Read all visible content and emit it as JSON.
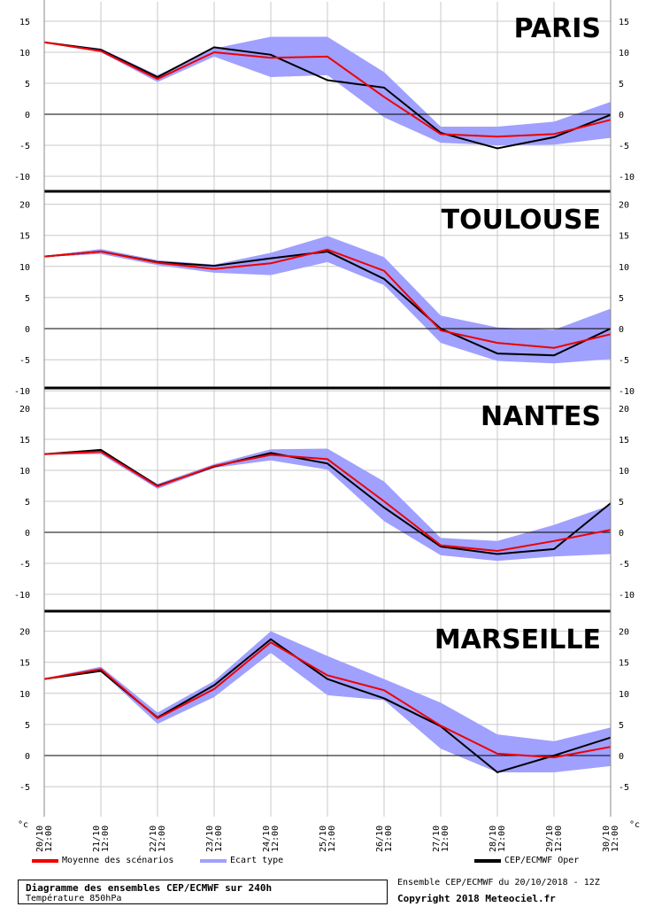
{
  "chart_data": [
    {
      "type": "line",
      "title": "PARIS",
      "yticks": [
        -10,
        -5,
        0,
        5,
        10,
        15
      ],
      "ylim": [
        -11,
        16
      ],
      "x": [
        "20/10 12:00",
        "21/10 12:00",
        "22/10 12:00",
        "23/10 12:00",
        "24/10 12:00",
        "25/10 12:00",
        "26/10 12:00",
        "27/10 12:00",
        "28/10 12:00",
        "29/10 12:00",
        "30/10 12:00"
      ],
      "series": [
        {
          "name": "Moyenne des scénarios",
          "values": [
            11.6,
            10.2,
            5.7,
            10.0,
            9.1,
            9.3,
            2.8,
            -3.2,
            -3.6,
            -3.2,
            -0.9
          ]
        },
        {
          "name": "CEP/ECMWF Oper",
          "values": [
            11.6,
            10.4,
            6.0,
            10.8,
            9.6,
            5.5,
            4.3,
            -3.0,
            -5.5,
            -3.7,
            -0.1
          ]
        }
      ],
      "band": {
        "name": "Ecart type",
        "upper": [
          11.7,
          10.6,
          6.3,
          10.6,
          12.5,
          12.5,
          6.8,
          -2.0,
          -2.0,
          -1.2,
          2.0
        ],
        "lower": [
          11.5,
          10.0,
          5.2,
          9.3,
          6.0,
          6.3,
          -0.5,
          -4.6,
          -5.0,
          -4.9,
          -3.8
        ]
      }
    },
    {
      "type": "line",
      "title": "TOULOUSE",
      "yticks": [
        -10,
        -5,
        0,
        5,
        10,
        15,
        20
      ],
      "ylim": [
        -10,
        21
      ],
      "x": [
        "20/10 12:00",
        "21/10 12:00",
        "22/10 12:00",
        "23/10 12:00",
        "24/10 12:00",
        "25/10 12:00",
        "26/10 12:00",
        "27/10 12:00",
        "28/10 12:00",
        "29/10 12:00",
        "30/10 12:00"
      ],
      "series": [
        {
          "name": "Moyenne des scénarios",
          "values": [
            11.6,
            12.4,
            10.6,
            9.6,
            10.5,
            12.7,
            9.3,
            -0.3,
            -2.3,
            -3.1,
            -0.9
          ]
        },
        {
          "name": "CEP/ECMWF Oper",
          "values": [
            11.6,
            12.4,
            10.7,
            10.1,
            11.3,
            12.4,
            8.0,
            0.0,
            -4.0,
            -4.3,
            0.0
          ]
        }
      ],
      "band": {
        "name": "Ecart type",
        "upper": [
          11.7,
          12.8,
          11.0,
          10.3,
          12.2,
          14.9,
          11.5,
          2.1,
          0.2,
          -0.2,
          3.2
        ],
        "lower": [
          11.5,
          12.0,
          10.2,
          9.0,
          8.6,
          10.7,
          7.0,
          -2.3,
          -5.2,
          -5.6,
          -4.9
        ]
      }
    },
    {
      "type": "line",
      "title": "NANTES",
      "yticks": [
        -10,
        -5,
        0,
        5,
        10,
        15,
        20
      ],
      "ylim": [
        -11,
        21
      ],
      "x": [
        "20/10 12:00",
        "21/10 12:00",
        "22/10 12:00",
        "23/10 12:00",
        "24/10 12:00",
        "25/10 12:00",
        "26/10 12:00",
        "27/10 12:00",
        "28/10 12:00",
        "29/10 12:00",
        "30/10 12:00"
      ],
      "series": [
        {
          "name": "Moyenne des scénarios",
          "values": [
            12.6,
            13.0,
            7.4,
            10.7,
            12.5,
            11.8,
            5.0,
            -2.1,
            -3.0,
            -1.4,
            0.4
          ]
        },
        {
          "name": "CEP/ECMWF Oper",
          "values": [
            12.6,
            13.3,
            7.5,
            10.6,
            12.8,
            11.1,
            4.0,
            -2.3,
            -3.5,
            -2.7,
            4.7
          ]
        }
      ],
      "band": {
        "name": "Ecart type",
        "upper": [
          12.7,
          13.4,
          7.8,
          11.0,
          13.4,
          13.5,
          8.2,
          -0.9,
          -1.4,
          1.2,
          4.4
        ],
        "lower": [
          12.5,
          12.6,
          7.0,
          10.4,
          11.6,
          10.1,
          1.8,
          -3.7,
          -4.6,
          -3.9,
          -3.5
        ]
      }
    },
    {
      "type": "line",
      "title": "MARSEILLE",
      "yticks": [
        -5,
        0,
        5,
        10,
        15,
        20
      ],
      "ylim": [
        -10,
        21
      ],
      "x": [
        "20/10 12:00",
        "21/10 12:00",
        "22/10 12:00",
        "23/10 12:00",
        "24/10 12:00",
        "25/10 12:00",
        "26/10 12:00",
        "27/10 12:00",
        "28/10 12:00",
        "29/10 12:00",
        "30/10 12:00"
      ],
      "series": [
        {
          "name": "Moyenne des scénarios",
          "values": [
            12.3,
            13.9,
            6.0,
            10.7,
            18.2,
            12.9,
            10.5,
            4.8,
            0.3,
            -0.3,
            1.4
          ]
        },
        {
          "name": "CEP/ECMWF Oper",
          "values": [
            12.3,
            13.6,
            6.1,
            11.3,
            18.7,
            12.3,
            9.2,
            4.7,
            -2.7,
            0.0,
            2.9
          ]
        }
      ],
      "band": {
        "name": "Ecart type",
        "upper": [
          12.4,
          14.3,
          6.9,
          12.0,
          20.0,
          16.0,
          12.3,
          8.5,
          3.4,
          2.3,
          4.5
        ],
        "lower": [
          12.2,
          13.5,
          5.1,
          9.4,
          16.5,
          9.7,
          8.9,
          1.1,
          -2.7,
          -2.7,
          -1.7
        ]
      }
    }
  ],
  "yunit": "°c",
  "xticks": [
    {
      "d": "20/10",
      "h": "12:00"
    },
    {
      "d": "21/10",
      "h": "12:00"
    },
    {
      "d": "22/10",
      "h": "12:00"
    },
    {
      "d": "23/10",
      "h": "12:00"
    },
    {
      "d": "24/10",
      "h": "12:00"
    },
    {
      "d": "25/10",
      "h": "12:00"
    },
    {
      "d": "26/10",
      "h": "12:00"
    },
    {
      "d": "27/10",
      "h": "12:00"
    },
    {
      "d": "28/10",
      "h": "12:00"
    },
    {
      "d": "29/10",
      "h": "12:00"
    },
    {
      "d": "30/10",
      "h": "12:00"
    }
  ],
  "colors": {
    "mean": "#ee0000",
    "band": "#a0a0ff",
    "oper": "#000000"
  },
  "legend": {
    "mean": "Moyenne des scénarios",
    "band": "Ecart type",
    "oper": "CEP/ECMWF Oper"
  },
  "footer": {
    "title": "Diagramme des ensembles CEP/ECMWF sur 240h",
    "subtitle": "Température 850hPa",
    "run": "Ensemble CEP/ECMWF du 20/10/2018 - 12Z",
    "copyright": "Copyright 2018 Meteociel.fr"
  }
}
